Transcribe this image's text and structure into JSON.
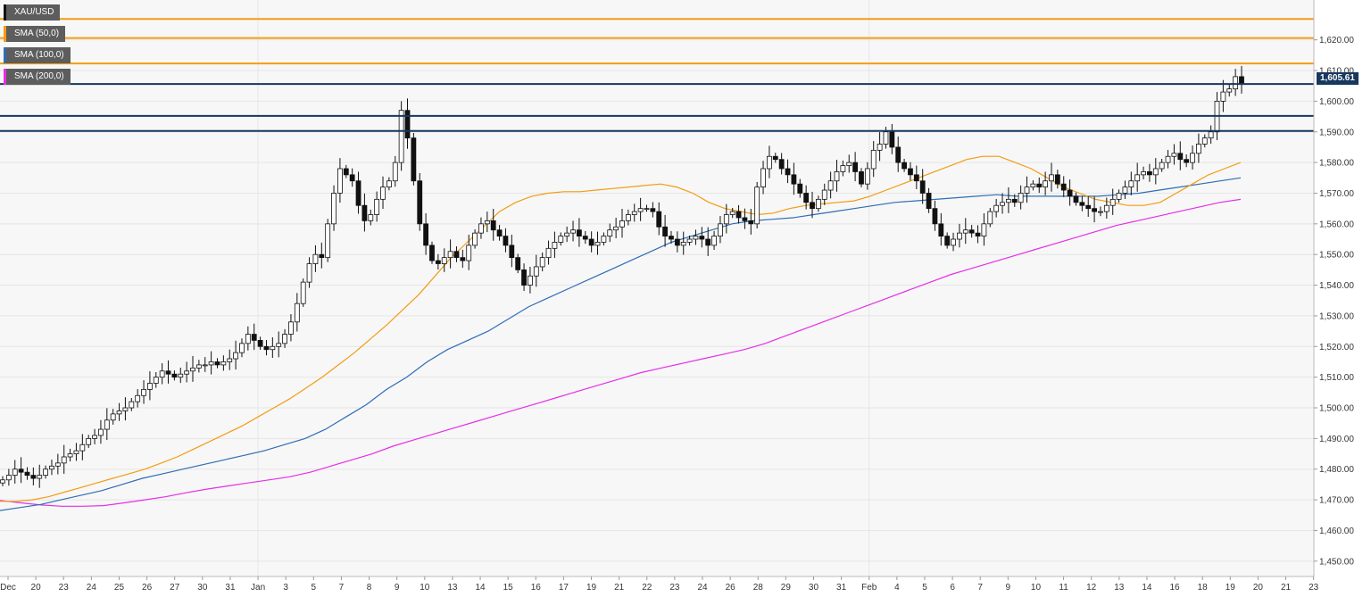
{
  "legend": [
    {
      "label": "XAU/USD",
      "color": "#111111"
    },
    {
      "label": "SMA (50,0)",
      "color": "#f39c12"
    },
    {
      "label": "SMA (100,0)",
      "color": "#2e6db4"
    },
    {
      "label": "SMA (200,0)",
      "color": "#e62ee6"
    }
  ],
  "price_tag": "1,605.61",
  "colors": {
    "background": "#f7f7f7",
    "grid": "#e6e6e6",
    "resistance_orange": "#f39c12",
    "level_blue": "#17375e",
    "sma50": "#f39c12",
    "sma100": "#2e6db4",
    "sma200": "#e62ee6"
  },
  "chart_data": {
    "type": "candlestick",
    "symbol": "XAU/USD",
    "ylim": [
      1445,
      1633
    ],
    "y_ticks": [
      {
        "value": 1450,
        "label": "1,450.00"
      },
      {
        "value": 1460,
        "label": "1,460.00"
      },
      {
        "value": 1470,
        "label": "1,470.00"
      },
      {
        "value": 1480,
        "label": "1,480.00"
      },
      {
        "value": 1490,
        "label": "1,490.00"
      },
      {
        "value": 1500,
        "label": "1,500.00"
      },
      {
        "value": 1510,
        "label": "1,510.00"
      },
      {
        "value": 1520,
        "label": "1,520.00"
      },
      {
        "value": 1530,
        "label": "1,530.00"
      },
      {
        "value": 1540,
        "label": "1,540.00"
      },
      {
        "value": 1550,
        "label": "1,550.00"
      },
      {
        "value": 1560,
        "label": "1,560.00"
      },
      {
        "value": 1570,
        "label": "1,570.00"
      },
      {
        "value": 1580,
        "label": "1,580.00"
      },
      {
        "value": 1590,
        "label": "1,590.00"
      },
      {
        "value": 1600,
        "label": "1,600.00"
      },
      {
        "value": 1610,
        "label": "1,610.00"
      },
      {
        "value": 1620,
        "label": "1,620.00"
      }
    ],
    "x_labels": [
      "Dec",
      "20",
      "23",
      "24",
      "25",
      "26",
      "27",
      "30",
      "31",
      "Jan",
      "3",
      "5",
      "7",
      "8",
      "9",
      "10",
      "13",
      "14",
      "15",
      "16",
      "17",
      "19",
      "21",
      "22",
      "23",
      "24",
      "26",
      "28",
      "29",
      "30",
      "31",
      "Feb",
      "4",
      "5",
      "6",
      "7",
      "9",
      "10",
      "11",
      "12",
      "13",
      "14",
      "16",
      "18",
      "19",
      "20",
      "21",
      "23"
    ],
    "horizontal_levels": [
      {
        "value": 1626.8,
        "style": "resistance"
      },
      {
        "value": 1620.6,
        "style": "resistance"
      },
      {
        "value": 1612.3,
        "style": "resistance"
      },
      {
        "value": 1605.61,
        "style": "level"
      },
      {
        "value": 1595.2,
        "style": "level"
      },
      {
        "value": 1590.3,
        "style": "level"
      }
    ],
    "close_series": [
      1476.5,
      1478,
      1480,
      1479,
      1478,
      1477,
      1478,
      1480,
      1481,
      1482,
      1484,
      1485,
      1486,
      1488,
      1490,
      1491,
      1493,
      1496,
      1498,
      1499,
      1500,
      1502,
      1504,
      1506,
      1508,
      1510,
      1512,
      1511,
      1510,
      1511,
      1512,
      1513,
      1514,
      1514,
      1515,
      1514,
      1515,
      1516,
      1518,
      1521,
      1524,
      1522,
      1520,
      1519,
      1520,
      1521,
      1524,
      1528,
      1534,
      1541,
      1547,
      1550,
      1549,
      1560,
      1570,
      1578,
      1576,
      1574,
      1566,
      1561,
      1563,
      1568,
      1572,
      1574,
      1580,
      1597,
      1588,
      1574,
      1560,
      1553,
      1548,
      1547,
      1549,
      1551,
      1549,
      1548,
      1553,
      1557,
      1560,
      1561,
      1558,
      1556,
      1553,
      1549,
      1545,
      1540,
      1543,
      1546,
      1549,
      1552,
      1554,
      1556,
      1557,
      1558,
      1556,
      1555,
      1553,
      1554,
      1556,
      1558,
      1559,
      1561,
      1563,
      1564,
      1565,
      1565,
      1564,
      1559,
      1556,
      1555,
      1553,
      1554,
      1555,
      1556,
      1555,
      1553,
      1556,
      1560,
      1563,
      1564,
      1562,
      1561,
      1560,
      1572,
      1578,
      1582,
      1581,
      1578,
      1576,
      1573,
      1570,
      1567,
      1565,
      1568,
      1571,
      1574,
      1577,
      1579,
      1580,
      1577,
      1573,
      1578,
      1584,
      1586,
      1590,
      1585,
      1580,
      1578,
      1576,
      1574,
      1570,
      1565,
      1560,
      1556,
      1553,
      1555,
      1557,
      1558,
      1557,
      1556,
      1560,
      1564,
      1566,
      1567,
      1568,
      1567,
      1570,
      1572,
      1573,
      1572,
      1574,
      1576,
      1573,
      1571,
      1569,
      1567,
      1566,
      1565,
      1564,
      1564,
      1566,
      1568,
      1570,
      1572,
      1574,
      1576,
      1577,
      1576,
      1578,
      1580,
      1582,
      1583,
      1581,
      1580,
      1583,
      1586,
      1588,
      1590,
      1600,
      1603,
      1604,
      1608,
      1605.6
    ],
    "sma50_series": [
      1469.5,
      1469.5,
      1470,
      1471,
      1472.5,
      1474,
      1475.5,
      1477,
      1478.5,
      1480,
      1482,
      1484,
      1486.5,
      1489,
      1491.5,
      1494,
      1497,
      1500,
      1503,
      1506.5,
      1510,
      1514,
      1518,
      1522.5,
      1527,
      1532,
      1537,
      1543,
      1549,
      1554,
      1559,
      1564,
      1567,
      1569,
      1570,
      1570.5,
      1570.5,
      1571,
      1571.5,
      1572,
      1572.5,
      1573,
      1572,
      1570,
      1567,
      1565,
      1564,
      1563,
      1563.5,
      1565,
      1566,
      1566.5,
      1567,
      1567.5,
      1569,
      1571,
      1573,
      1575,
      1577,
      1579,
      1581,
      1582,
      1582,
      1580,
      1578,
      1575,
      1572,
      1570,
      1568,
      1567,
      1566,
      1566,
      1567,
      1570,
      1573,
      1576,
      1578,
      1580
    ],
    "sma100_series": [
      1466.5,
      1467.5,
      1468.5,
      1470,
      1471.5,
      1473,
      1475,
      1477,
      1478.5,
      1480,
      1481.5,
      1483,
      1484.5,
      1486,
      1488,
      1490,
      1493,
      1497,
      1501,
      1506,
      1510,
      1515,
      1519,
      1522,
      1525,
      1529,
      1533,
      1536,
      1539,
      1542,
      1545,
      1548,
      1551,
      1554,
      1556,
      1558,
      1560,
      1561,
      1561.5,
      1562,
      1563,
      1564,
      1565,
      1566,
      1567,
      1567.5,
      1568,
      1568.5,
      1569,
      1569.5,
      1569,
      1569,
      1569,
      1569,
      1569,
      1569.5,
      1570,
      1571,
      1572,
      1573,
      1574,
      1575
    ],
    "sma200_series": [
      1469.8,
      1469,
      1468.3,
      1467.9,
      1467.9,
      1468.1,
      1469,
      1470,
      1471,
      1472.3,
      1473.5,
      1474.5,
      1475.5,
      1476.5,
      1477.5,
      1479,
      1481,
      1483,
      1485,
      1487.5,
      1489.5,
      1491.5,
      1493.5,
      1495.5,
      1497.5,
      1499.5,
      1501.5,
      1503.5,
      1505.5,
      1507.5,
      1509.5,
      1511.5,
      1513,
      1514.5,
      1516,
      1517.5,
      1519,
      1521,
      1523.5,
      1526,
      1528.5,
      1531,
      1533.5,
      1536,
      1538.5,
      1541,
      1543.5,
      1545.5,
      1547.5,
      1549.5,
      1551.5,
      1553.5,
      1555.5,
      1557.5,
      1559.5,
      1561,
      1562.5,
      1564,
      1565.5,
      1567,
      1568
    ]
  }
}
